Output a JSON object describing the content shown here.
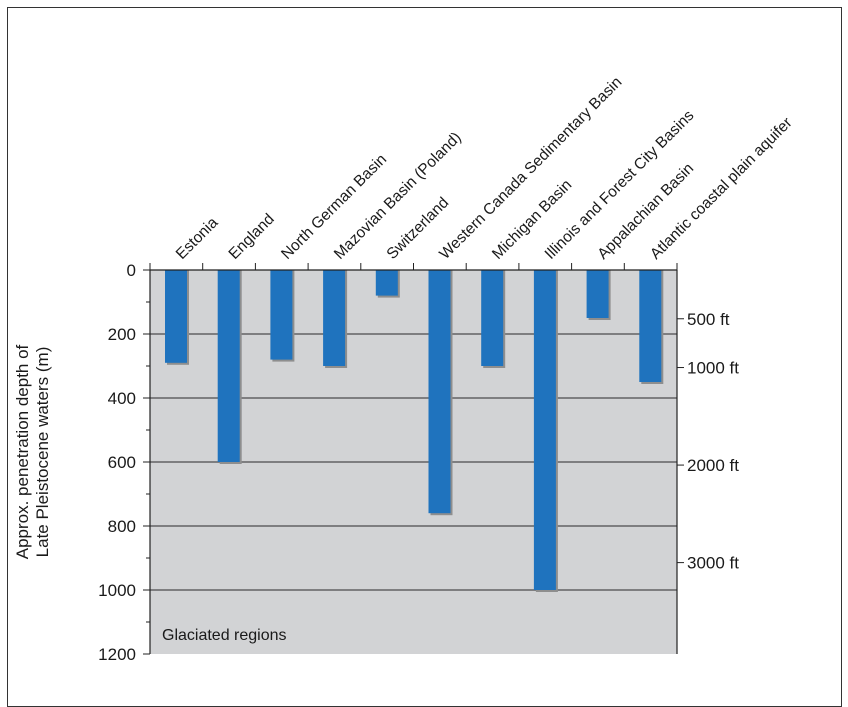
{
  "chart_data": {
    "type": "bar",
    "orientation": "downward",
    "categories": [
      "Estonia",
      "England",
      "North German Basin",
      "Mazovian Basin (Poland)",
      "Switzerland",
      "Western Canada Sedimentary Basin",
      "Michigan Basin",
      "Illinois and Forest City Basins",
      "Appalachian Basin",
      "Atlantic coastal plain aquifer"
    ],
    "values": [
      290,
      600,
      280,
      300,
      80,
      760,
      300,
      1000,
      150,
      350
    ],
    "ylabel": [
      "Approx. penetration depth of",
      "Late Pleistocene waters (m)"
    ],
    "ylim": [
      0,
      1200
    ],
    "yticks": [
      0,
      200,
      400,
      600,
      800,
      1000,
      1200
    ],
    "secondary_axis": {
      "unit": "ft",
      "ticks": [
        {
          "label": "500 ft",
          "value_m": 152.4
        },
        {
          "label": "1000 ft",
          "value_m": 304.8
        },
        {
          "label": "2000 ft",
          "value_m": 609.6
        },
        {
          "label": "3000 ft",
          "value_m": 914.4
        }
      ]
    },
    "grid": true,
    "annotation": "Glaciated regions",
    "colors": {
      "bar": "#1f73be",
      "bar_shadow": "#8e8e8e",
      "background": "#d2d3d5",
      "grid": "#2a2a2a"
    }
  }
}
